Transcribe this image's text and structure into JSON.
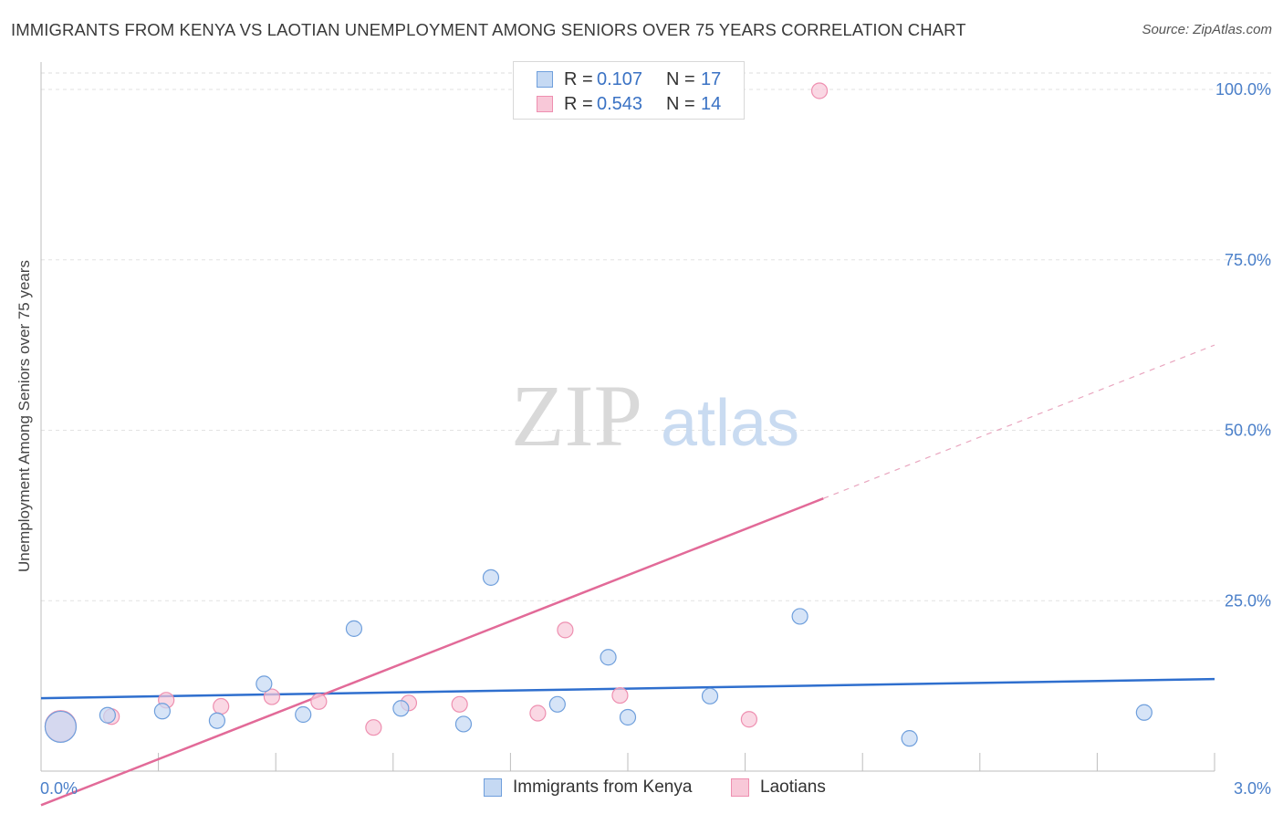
{
  "title": "IMMIGRANTS FROM KENYA VS LAOTIAN UNEMPLOYMENT AMONG SENIORS OVER 75 YEARS CORRELATION CHART",
  "source": "Source: ZipAtlas.com",
  "watermark": {
    "zip": "ZIP",
    "atlas": "atlas"
  },
  "legend": {
    "rows": [
      {
        "r_label": "R =",
        "r_value": "0.107",
        "n_label": "N =",
        "n_value": "17"
      },
      {
        "r_label": "R =",
        "r_value": "0.543",
        "n_label": "N =",
        "n_value": "14"
      }
    ]
  },
  "chart_data": {
    "type": "scatter",
    "title": "IMMIGRANTS FROM KENYA VS LAOTIAN UNEMPLOYMENT AMONG SENIORS OVER 75 YEARS CORRELATION CHART",
    "xlabel": "",
    "ylabel": "Unemployment Among Seniors over 75 years",
    "xlim": [
      0,
      3.0
    ],
    "ylim": [
      0,
      100
    ],
    "x_tick_labels": [
      "0.0%",
      "3.0%"
    ],
    "y_ticks": [
      25,
      50,
      75,
      100
    ],
    "y_tick_labels": [
      "25.0%",
      "50.0%",
      "75.0%",
      "100.0%"
    ],
    "grid": true,
    "legend_position": "top-center",
    "series": [
      {
        "name": "Immigrants from Kenya",
        "color": "#6f9fdc",
        "fill": "#c5d9f3",
        "points": [
          {
            "x": 0.05,
            "y": 6.5,
            "big": true
          },
          {
            "x": 0.17,
            "y": 8.2
          },
          {
            "x": 0.31,
            "y": 8.8
          },
          {
            "x": 0.45,
            "y": 7.4
          },
          {
            "x": 0.57,
            "y": 12.8
          },
          {
            "x": 0.67,
            "y": 8.3
          },
          {
            "x": 0.8,
            "y": 20.9
          },
          {
            "x": 0.92,
            "y": 9.2
          },
          {
            "x": 1.08,
            "y": 6.9
          },
          {
            "x": 1.15,
            "y": 28.4
          },
          {
            "x": 1.32,
            "y": 9.8
          },
          {
            "x": 1.45,
            "y": 16.7
          },
          {
            "x": 1.5,
            "y": 7.9
          },
          {
            "x": 1.71,
            "y": 11.0
          },
          {
            "x": 1.94,
            "y": 22.7
          },
          {
            "x": 2.22,
            "y": 4.8
          },
          {
            "x": 2.82,
            "y": 8.6
          }
        ],
        "trend": {
          "x0": 0.0,
          "y0": 10.7,
          "x1": 3.0,
          "y1": 13.5
        }
      },
      {
        "name": "Laotians",
        "color": "#ee8fb0",
        "fill": "#f8c8d8",
        "points": [
          {
            "x": 0.05,
            "y": 6.6,
            "big": true
          },
          {
            "x": 0.18,
            "y": 8.0
          },
          {
            "x": 0.32,
            "y": 10.4
          },
          {
            "x": 0.46,
            "y": 9.5
          },
          {
            "x": 0.59,
            "y": 10.9
          },
          {
            "x": 0.71,
            "y": 10.2
          },
          {
            "x": 0.85,
            "y": 6.4
          },
          {
            "x": 0.94,
            "y": 10.0
          },
          {
            "x": 1.07,
            "y": 9.8
          },
          {
            "x": 1.27,
            "y": 8.5
          },
          {
            "x": 1.34,
            "y": 20.7
          },
          {
            "x": 1.48,
            "y": 11.1
          },
          {
            "x": 1.81,
            "y": 7.6
          },
          {
            "x": 1.99,
            "y": 99.8
          }
        ],
        "trend": {
          "x0": 0.0,
          "y0": -5.0,
          "x1": 2.0,
          "y1": 40.0,
          "dash_to_x": 3.0,
          "dash_to_y": 62.5
        }
      }
    ]
  }
}
